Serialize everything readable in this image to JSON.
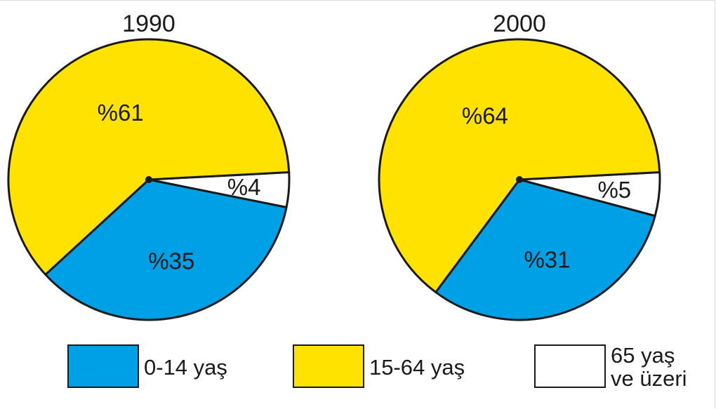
{
  "chart_data": [
    {
      "type": "pie",
      "title": "1990",
      "slices": [
        {
          "label": "0-14 yaş",
          "value": 35,
          "text": "%35",
          "color": "#00a0e6"
        },
        {
          "label": "15-64 yaş",
          "value": 61,
          "text": "%61",
          "color": "#ffe200"
        },
        {
          "label": "65 yaş ve üzeri",
          "value": 4,
          "text": "%4",
          "color": "#ffffff"
        }
      ]
    },
    {
      "type": "pie",
      "title": "2000",
      "slices": [
        {
          "label": "0-14 yaş",
          "value": 31,
          "text": "%31",
          "color": "#00a0e6"
        },
        {
          "label": "15-64 yaş",
          "value": 64,
          "text": "%64",
          "color": "#ffe200"
        },
        {
          "label": "65 yaş ve üzeri",
          "value": 5,
          "text": "%5",
          "color": "#ffffff"
        }
      ]
    }
  ],
  "legend": [
    {
      "label_lines": [
        "0-14 yaş"
      ],
      "color": "#00a0e6"
    },
    {
      "label_lines": [
        "15-64 yaş"
      ],
      "color": "#ffe200"
    },
    {
      "label_lines": [
        "65 yaş",
        "ve üzeri"
      ],
      "color": "#ffffff"
    }
  ]
}
